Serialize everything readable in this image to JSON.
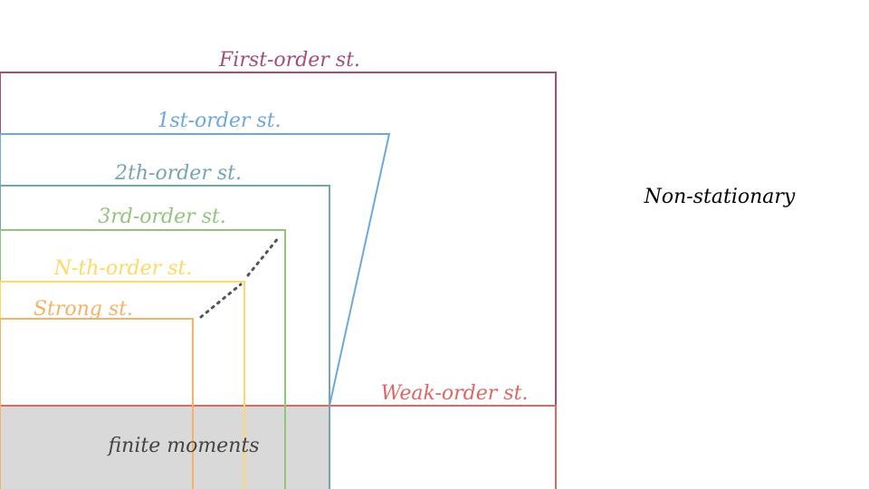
{
  "colors": {
    "first_order": "#a64d79",
    "first": "#6fa8dc",
    "second": "#76a5af",
    "third": "#93c47d",
    "nth": "#ffd966",
    "strong": "#f6b26b",
    "weak": "#e06666",
    "finite_fill": "#d9d9d9",
    "dots": "#555555",
    "text_dark": "#444444",
    "text_black": "#000000"
  },
  "labels": {
    "first_order": "First-order st.",
    "first": "1st-order st.",
    "second": "2th-order st.",
    "third": "3rd-order st.",
    "nth": "N-th-order st.",
    "strong": "Strong st.",
    "weak": "Weak-order st.",
    "finite": "finite moments",
    "non_stationary": "Non-stationary"
  }
}
